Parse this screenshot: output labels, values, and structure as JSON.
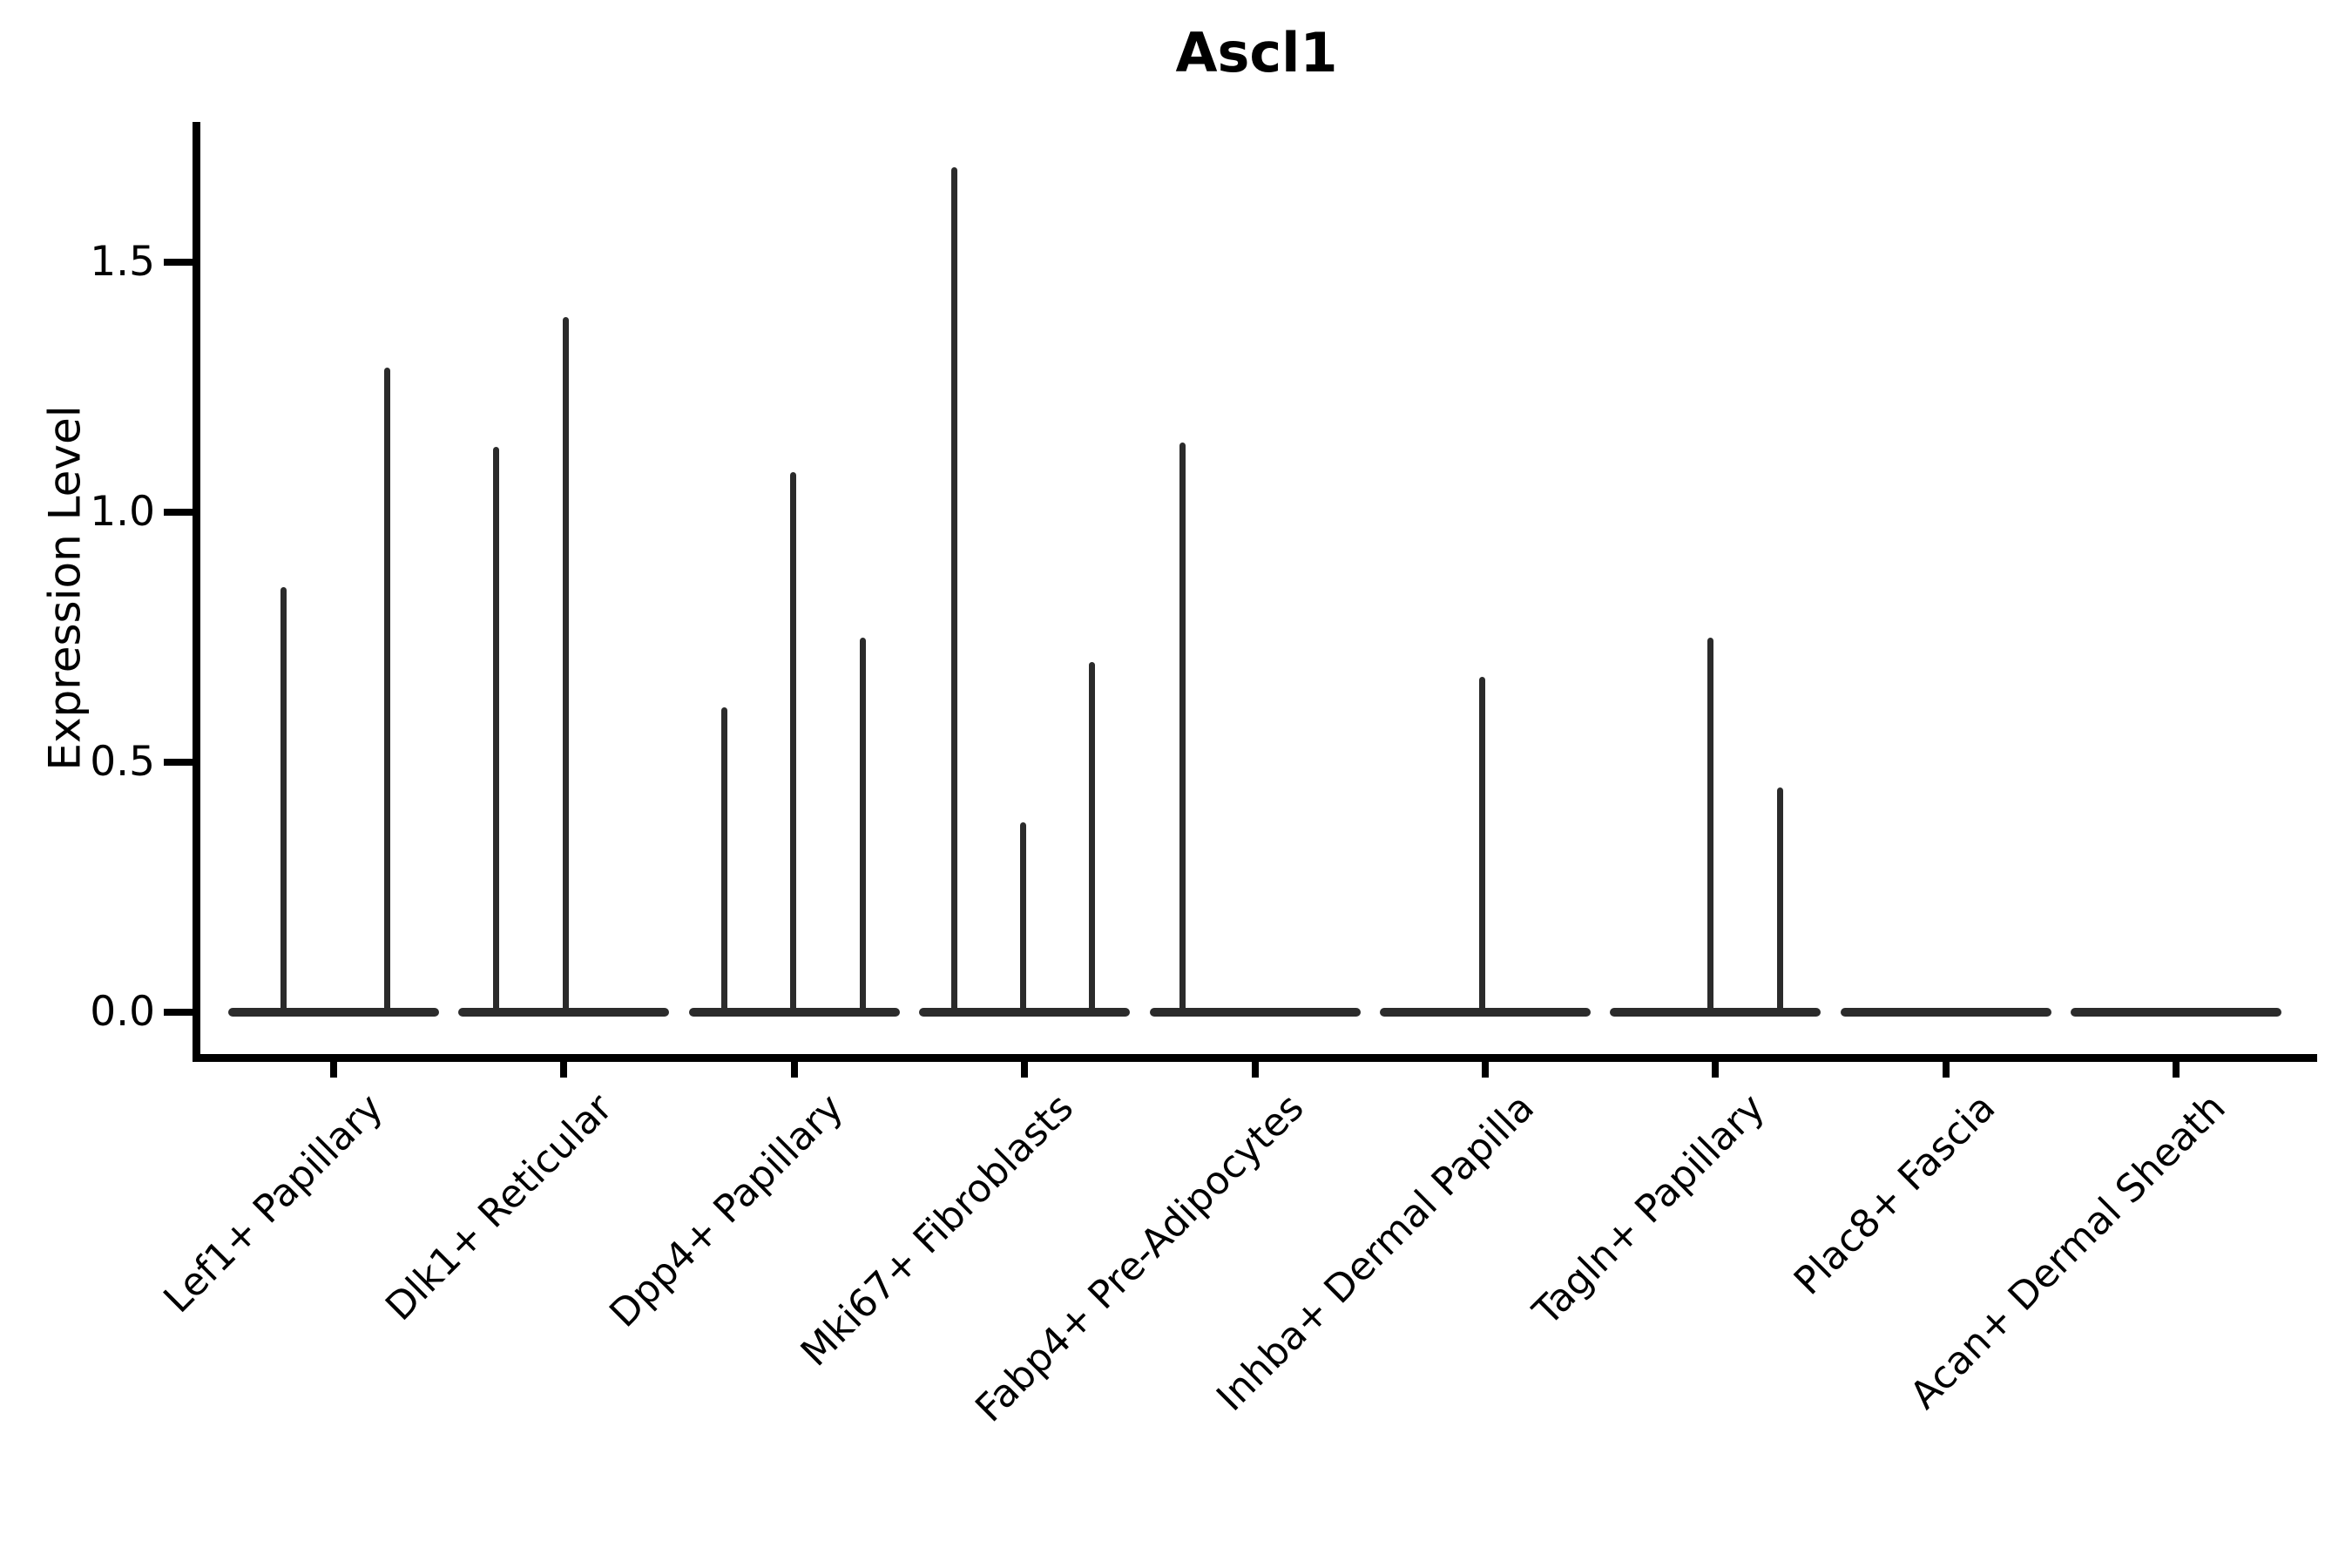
{
  "chart_data": {
    "type": "violin",
    "title": "Ascl1",
    "ylabel": "Expression Level",
    "xlabel": "",
    "grid": false,
    "legend": null,
    "ylim": [
      -0.08,
      1.78
    ],
    "y_ticks": [
      {
        "label": "0.0",
        "value": 0.0
      },
      {
        "label": "0.5",
        "value": 0.5
      },
      {
        "label": "1.0",
        "value": 1.0
      },
      {
        "label": "1.5",
        "value": 1.5
      }
    ],
    "categories": [
      {
        "label": "Lef1+ Papillary",
        "violins": [
          {
            "dx": -58,
            "max": 0.85
          },
          {
            "dx": 61,
            "max": 1.29
          }
        ]
      },
      {
        "label": "Dlk1+ Reticular",
        "violins": [
          {
            "dx": -78,
            "max": 1.13
          },
          {
            "dx": 2,
            "max": 1.39
          }
        ]
      },
      {
        "label": "Dpp4+ Papillary",
        "violins": [
          {
            "dx": -80,
            "max": 0.61
          },
          {
            "dx": -1,
            "max": 1.08
          },
          {
            "dx": 79,
            "max": 0.75
          }
        ]
      },
      {
        "label": "Mki67+ Fibroblasts",
        "violins": [
          {
            "dx": -81,
            "max": 1.69
          },
          {
            "dx": -2,
            "max": 0.38
          },
          {
            "dx": 77,
            "max": 0.7
          }
        ]
      },
      {
        "label": "Fabp4+ Pre-Adipocytes",
        "violins": [
          {
            "dx": -83,
            "max": 1.14
          }
        ]
      },
      {
        "label": "Inhba+ Dermal Papilla",
        "violins": [
          {
            "dx": -4,
            "max": 0.67
          }
        ]
      },
      {
        "label": "Tagln+ Papillary",
        "violins": [
          {
            "dx": -6,
            "max": 0.75
          },
          {
            "dx": 74,
            "max": 0.45
          }
        ]
      },
      {
        "label": "Plac8+ Fascia",
        "violins": []
      },
      {
        "label": "Acan+ Dermal Sheath",
        "violins": []
      }
    ],
    "colors": {
      "line": "#2b2b2b",
      "axis": "#000000",
      "background": "#ffffff"
    }
  }
}
